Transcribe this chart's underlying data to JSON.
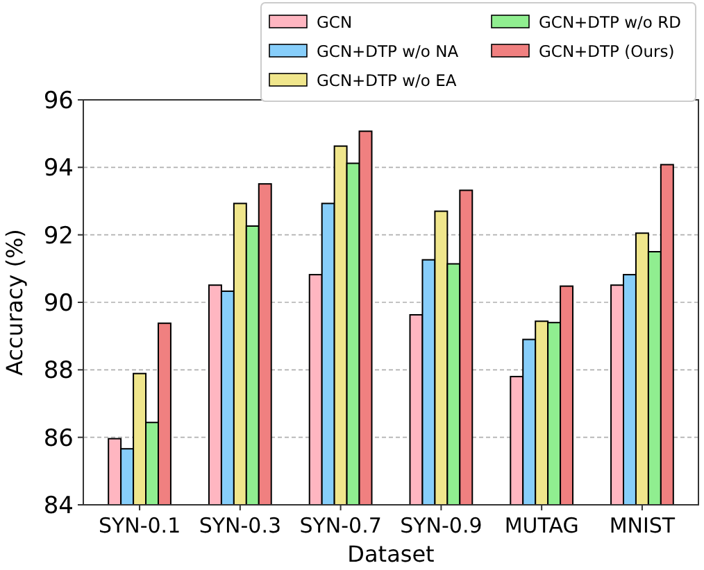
{
  "chart_data": {
    "type": "bar",
    "xlabel": "Dataset",
    "ylabel": "Accuracy (%)",
    "categories": [
      "SYN-0.1",
      "SYN-0.3",
      "SYN-0.7",
      "SYN-0.9",
      "MUTAG",
      "MNIST"
    ],
    "series": [
      {
        "name": "GCN",
        "color": "#ffb6c1",
        "values": [
          85.96,
          90.51,
          90.82,
          89.63,
          87.8,
          90.51
        ]
      },
      {
        "name": "GCN+DTP w/o NA",
        "color": "#87cefa",
        "values": [
          85.66,
          90.33,
          92.93,
          91.26,
          88.9,
          90.82
        ]
      },
      {
        "name": "GCN+DTP w/o EA",
        "color": "#f0e68c",
        "values": [
          87.89,
          92.93,
          94.63,
          92.7,
          89.44,
          92.05
        ]
      },
      {
        "name": "GCN+DTP w/o RD",
        "color": "#90ee90",
        "values": [
          86.44,
          92.26,
          94.12,
          91.14,
          89.4,
          91.5
        ]
      },
      {
        "name": "GCN+DTP (Ours)",
        "color": "#f08080",
        "values": [
          89.38,
          93.51,
          95.07,
          93.32,
          90.48,
          94.08
        ]
      }
    ],
    "ylim": [
      84,
      96
    ],
    "yticks": [
      84,
      86,
      88,
      90,
      92,
      94,
      96
    ],
    "grid": "y",
    "legend": "top right"
  }
}
